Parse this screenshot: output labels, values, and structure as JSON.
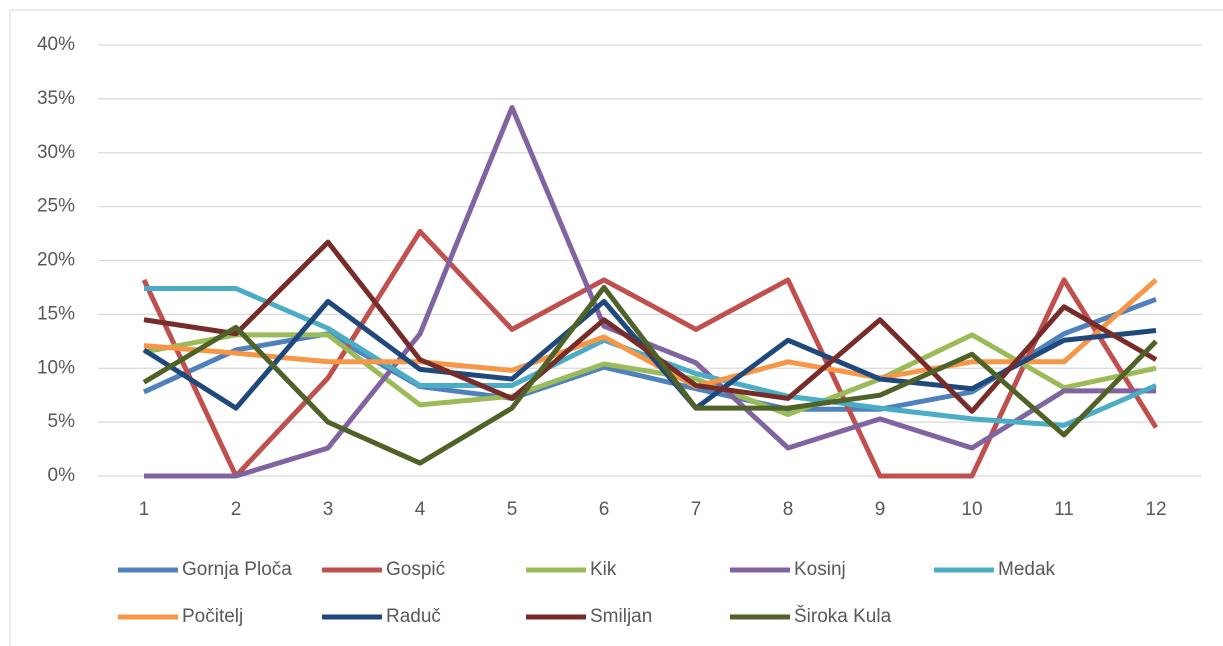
{
  "chart_data": {
    "type": "line",
    "categories": [
      "1",
      "2",
      "3",
      "4",
      "5",
      "6",
      "7",
      "8",
      "9",
      "10",
      "11",
      "12"
    ],
    "ylim": [
      0,
      40
    ],
    "yticks": [
      {
        "value": 0,
        "label": "0%"
      },
      {
        "value": 5,
        "label": "5%"
      },
      {
        "value": 10,
        "label": "10%"
      },
      {
        "value": 15,
        "label": "15%"
      },
      {
        "value": 20,
        "label": "20%"
      },
      {
        "value": 25,
        "label": "25%"
      },
      {
        "value": 30,
        "label": "30%"
      },
      {
        "value": 35,
        "label": "35%"
      },
      {
        "value": 40,
        "label": "40%"
      }
    ],
    "grid": true,
    "legend": "bottom",
    "series": [
      {
        "name": "Gornja Ploča",
        "color": "#4f81bd",
        "values": [
          7.8,
          11.7,
          13.2,
          8.3,
          7.2,
          10.1,
          8.1,
          6.2,
          6.2,
          7.8,
          13.2,
          16.4
        ]
      },
      {
        "name": "Gospić",
        "color": "#c0504d",
        "values": [
          18.2,
          0,
          9.1,
          22.7,
          13.6,
          18.2,
          13.6,
          18.2,
          0,
          0,
          18.2,
          4.5
        ]
      },
      {
        "name": "Kik",
        "color": "#9bbb59",
        "values": [
          11.5,
          13.1,
          13.1,
          6.6,
          7.4,
          10.4,
          9.0,
          5.7,
          9.0,
          13.1,
          8.2,
          10.0
        ]
      },
      {
        "name": "Kosinj",
        "color": "#8064a2",
        "values": [
          0,
          0,
          2.6,
          13.2,
          34.2,
          13.9,
          10.5,
          2.6,
          5.3,
          2.6,
          7.9,
          7.9
        ]
      },
      {
        "name": "Medak",
        "color": "#4bacc6",
        "values": [
          17.4,
          17.4,
          13.7,
          8.4,
          8.4,
          12.6,
          9.5,
          7.4,
          6.3,
          5.3,
          4.7,
          8.4
        ]
      },
      {
        "name": "Počitelj",
        "color": "#f79646",
        "values": [
          12.1,
          11.4,
          10.6,
          10.6,
          9.8,
          12.9,
          8.3,
          10.6,
          9.1,
          10.6,
          10.6,
          18.2
        ]
      },
      {
        "name": "Raduč",
        "color": "#1f497d",
        "values": [
          11.7,
          6.3,
          16.2,
          9.9,
          9.0,
          16.2,
          6.3,
          12.6,
          9.0,
          8.1,
          12.6,
          13.5
        ]
      },
      {
        "name": "Smiljan",
        "color": "#772c2a",
        "values": [
          14.5,
          13.2,
          21.7,
          10.8,
          7.2,
          14.5,
          8.4,
          7.2,
          14.5,
          6.0,
          15.7,
          10.8
        ]
      },
      {
        "name": "Široka Kula",
        "color": "#4f6228",
        "values": [
          8.7,
          13.8,
          5.0,
          1.2,
          6.3,
          17.5,
          6.3,
          6.3,
          7.5,
          11.3,
          3.8,
          12.5
        ]
      }
    ]
  }
}
